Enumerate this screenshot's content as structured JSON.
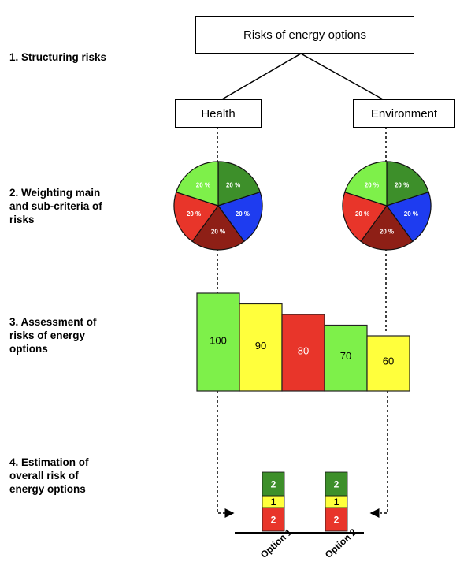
{
  "steps": [
    {
      "text": "1. Structuring risks"
    },
    {
      "text": "2. Weighting main\nand sub-criteria of\nrisks"
    },
    {
      "text": "3. Assessment of\nrisks of energy\noptions"
    },
    {
      "text": "4. Estimation of\noverall risk of\nenergy options"
    }
  ],
  "root": {
    "label": "Risks of energy options"
  },
  "criteria": [
    {
      "label": "Health"
    },
    {
      "label": "Environment"
    }
  ],
  "colors": {
    "green_dark": "#3d8f2a",
    "blue": "#1e3cf0",
    "green_light": "#7ef04a",
    "red_dark": "#8e1f16",
    "red": "#e8352a",
    "yellow": "#ffff3c"
  },
  "pies": [
    {
      "slices": [
        {
          "label": "20 %",
          "color": "#3d8f2a"
        },
        {
          "label": "20 %",
          "color": "#1e3cf0"
        },
        {
          "label": "20 %",
          "color": "#8e1f16"
        },
        {
          "label": "20 %",
          "color": "#e8352a"
        },
        {
          "label": "20 %",
          "color": "#7ef04a"
        }
      ]
    },
    {
      "slices": [
        {
          "label": "20 %",
          "color": "#3d8f2a"
        },
        {
          "label": "20 %",
          "color": "#1e3cf0"
        },
        {
          "label": "20 %",
          "color": "#8e1f16"
        },
        {
          "label": "20 %",
          "color": "#e8352a"
        },
        {
          "label": "20 %",
          "color": "#7ef04a"
        }
      ]
    }
  ],
  "assessment_bars": [
    {
      "value": 100,
      "label": "100",
      "color": "#7ef04a"
    },
    {
      "value": 90,
      "label": "90",
      "color": "#ffff3c"
    },
    {
      "value": 80,
      "label": "80",
      "color": "#e8352a"
    },
    {
      "value": 70,
      "label": "70",
      "color": "#7ef04a"
    },
    {
      "value": 60,
      "label": "60",
      "color": "#ffff3c"
    }
  ],
  "options": [
    {
      "label": "Option 1",
      "segments": [
        {
          "value": 2,
          "label": "2",
          "color": "#e8352a"
        },
        {
          "value": 1,
          "label": "1",
          "color": "#ffff3c"
        },
        {
          "value": 2,
          "label": "2",
          "color": "#3d8f2a"
        }
      ]
    },
    {
      "label": "Option 2",
      "segments": [
        {
          "value": 2,
          "label": "2",
          "color": "#e8352a"
        },
        {
          "value": 1,
          "label": "1",
          "color": "#ffff3c"
        },
        {
          "value": 2,
          "label": "2",
          "color": "#3d8f2a"
        }
      ]
    }
  ]
}
